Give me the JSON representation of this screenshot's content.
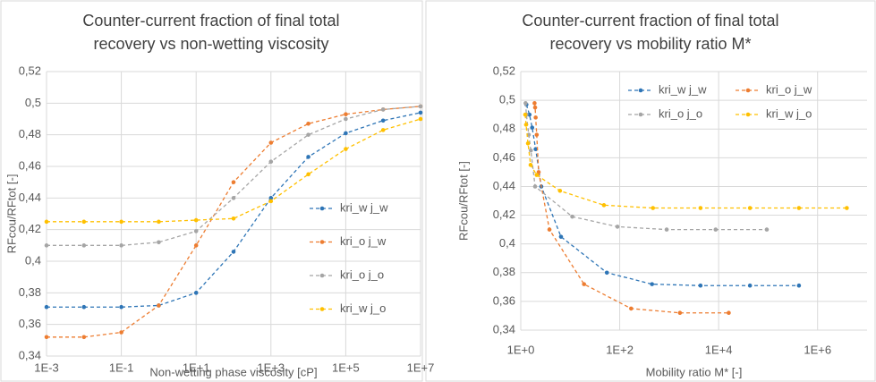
{
  "chart_data": [
    {
      "type": "line",
      "title": [
        "Counter-current fraction of final total",
        "recovery vs non-wetting viscosity"
      ],
      "x_label": "Non-wetting phase viscosity [cP]",
      "y_label": "RFcou/RFtot [-]",
      "x": [
        0.001,
        0.01,
        0.1,
        1,
        10,
        100,
        1000,
        10000,
        100000,
        1000000,
        10000000
      ],
      "xscale": "log",
      "xlim": [
        0.001,
        10000000
      ],
      "xticks": [
        {
          "value": 0.001,
          "label": "1E-3"
        },
        {
          "value": 0.1,
          "label": "1E-1"
        },
        {
          "value": 10,
          "label": "1E+1"
        },
        {
          "value": 1000,
          "label": "1E+3"
        },
        {
          "value": 100000,
          "label": "1E+5"
        },
        {
          "value": 10000000,
          "label": "1E+7"
        }
      ],
      "ylim": [
        0.34,
        0.52
      ],
      "yticks": [
        {
          "value": 0.34,
          "label": "0,34"
        },
        {
          "value": 0.36,
          "label": "0,36"
        },
        {
          "value": 0.38,
          "label": "0,38"
        },
        {
          "value": 0.4,
          "label": "0,4"
        },
        {
          "value": 0.42,
          "label": "0,42"
        },
        {
          "value": 0.44,
          "label": "0,44"
        },
        {
          "value": 0.46,
          "label": "0,46"
        },
        {
          "value": 0.48,
          "label": "0,48"
        },
        {
          "value": 0.5,
          "label": "0,5"
        },
        {
          "value": 0.52,
          "label": "0,52"
        }
      ],
      "grid": true,
      "legend": "right",
      "series": [
        {
          "name": "kri_w j_w",
          "color": "#2e75b6",
          "values": [
            0.371,
            0.371,
            0.371,
            0.372,
            0.38,
            0.406,
            0.44,
            0.466,
            0.481,
            0.489,
            0.494
          ]
        },
        {
          "name": "kri_o j_w",
          "color": "#ed7d31",
          "values": [
            0.352,
            0.352,
            0.355,
            0.372,
            0.41,
            0.45,
            0.475,
            0.487,
            0.493,
            0.496,
            0.498
          ]
        },
        {
          "name": "kri_o j_o",
          "color": "#a5a5a5",
          "values": [
            0.41,
            0.41,
            0.41,
            0.412,
            0.419,
            0.44,
            0.463,
            0.48,
            0.49,
            0.496,
            0.498
          ]
        },
        {
          "name": "kri_w j_o",
          "color": "#ffc000",
          "values": [
            0.425,
            0.425,
            0.425,
            0.425,
            0.426,
            0.427,
            0.438,
            0.455,
            0.471,
            0.483,
            0.49
          ]
        }
      ]
    },
    {
      "type": "line",
      "title": [
        "Counter-current fraction of final total",
        "recovery vs mobility ratio M*"
      ],
      "x_label": "Mobility ratio M* [-]",
      "y_label": "RFcou/RFtot [-]",
      "xscale": "log",
      "xlim": [
        1,
        10000000
      ],
      "xticks": [
        {
          "value": 1,
          "label": "1E+0"
        },
        {
          "value": 100,
          "label": "1E+2"
        },
        {
          "value": 10000,
          "label": "1E+4"
        },
        {
          "value": 1000000,
          "label": "1E+6"
        }
      ],
      "ylim": [
        0.34,
        0.52
      ],
      "yticks": [
        {
          "value": 0.34,
          "label": "0,34"
        },
        {
          "value": 0.36,
          "label": "0,36"
        },
        {
          "value": 0.38,
          "label": "0,38"
        },
        {
          "value": 0.4,
          "label": "0,4"
        },
        {
          "value": 0.42,
          "label": "0,42"
        },
        {
          "value": 0.44,
          "label": "0,44"
        },
        {
          "value": 0.46,
          "label": "0,46"
        },
        {
          "value": 0.48,
          "label": "0,48"
        },
        {
          "value": 0.5,
          "label": "0,5"
        },
        {
          "value": 0.52,
          "label": "0,52"
        }
      ],
      "grid": true,
      "legend": "top",
      "series": [
        {
          "name": "kri_w j_w",
          "color": "#2e75b6",
          "x": [
            1.3,
            1.5,
            1.7,
            2,
            2.6,
            6.5,
            55,
            450,
            4300,
            43000,
            420000
          ],
          "values": [
            0.497,
            0.49,
            0.481,
            0.466,
            0.44,
            0.405,
            0.38,
            0.372,
            0.371,
            0.371,
            0.371
          ]
        },
        {
          "name": "kri_o j_w",
          "color": "#ed7d31",
          "x": [
            1.9,
            1.95,
            2,
            2.1,
            2.3,
            3.8,
            19,
            170,
            1650,
            16000
          ],
          "values": [
            0.498,
            0.495,
            0.488,
            0.476,
            0.45,
            0.41,
            0.372,
            0.355,
            0.352,
            0.352
          ]
        },
        {
          "name": "kri_o j_o",
          "color": "#a5a5a5",
          "x": [
            1.25,
            1.3,
            1.45,
            1.6,
            1.95,
            11,
            90,
            890,
            8700,
            94000
          ],
          "values": [
            0.498,
            0.49,
            0.476,
            0.465,
            0.44,
            0.419,
            0.412,
            0.41,
            0.41,
            0.41
          ]
        },
        {
          "name": "kri_w j_o",
          "color": "#ffc000",
          "x": [
            1.23,
            1.28,
            1.4,
            1.58,
            2.1,
            6.2,
            48,
            470,
            4300,
            43000,
            420000,
            3900000
          ],
          "values": [
            0.49,
            0.483,
            0.47,
            0.455,
            0.448,
            0.437,
            0.427,
            0.425,
            0.425,
            0.425,
            0.425,
            0.425
          ]
        }
      ]
    }
  ]
}
